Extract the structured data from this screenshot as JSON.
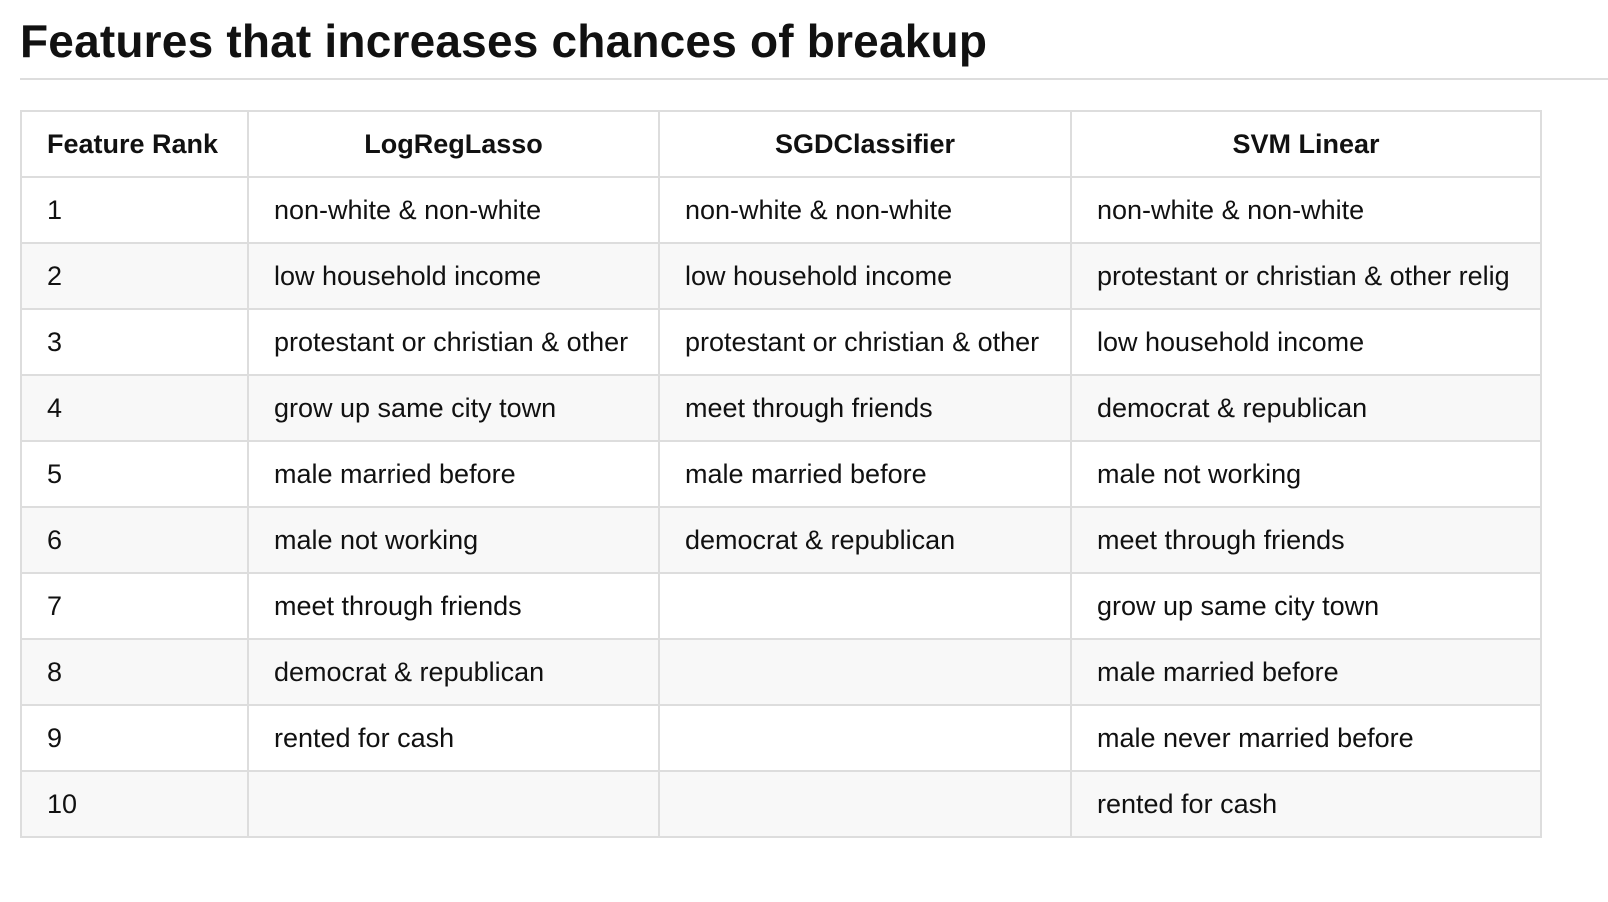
{
  "title": "Features that increases chances of breakup",
  "table": {
    "headers": {
      "rank": "Feature Rank",
      "lasso": "LogRegLasso",
      "sgd": "SGDClassifier",
      "svm": "SVM Linear"
    },
    "rows": [
      {
        "rank": "1",
        "lasso": "non-white & non-white",
        "sgd": "non-white & non-white",
        "svm": "non-white & non-white"
      },
      {
        "rank": "2",
        "lasso": "low household income",
        "sgd": "low household income",
        "svm": "protestant or christian & other relig"
      },
      {
        "rank": "3",
        "lasso": "protestant or christian & other",
        "sgd": "protestant or christian & other",
        "svm": "low household income"
      },
      {
        "rank": "4",
        "lasso": "grow up same city town",
        "sgd": "meet through friends",
        "svm": "democrat & republican"
      },
      {
        "rank": "5",
        "lasso": "male married before",
        "sgd": "male married before",
        "svm": "male not working"
      },
      {
        "rank": "6",
        "lasso": "male not working",
        "sgd": "democrat & republican",
        "svm": "meet through friends"
      },
      {
        "rank": "7",
        "lasso": "meet through friends",
        "sgd": "",
        "svm": "grow up same city town"
      },
      {
        "rank": "8",
        "lasso": "democrat & republican",
        "sgd": "",
        "svm": "male married before"
      },
      {
        "rank": "9",
        "lasso": "rented for cash",
        "sgd": "",
        "svm": "male never married before"
      },
      {
        "rank": "10",
        "lasso": "",
        "sgd": "",
        "svm": "rented for cash"
      }
    ]
  }
}
